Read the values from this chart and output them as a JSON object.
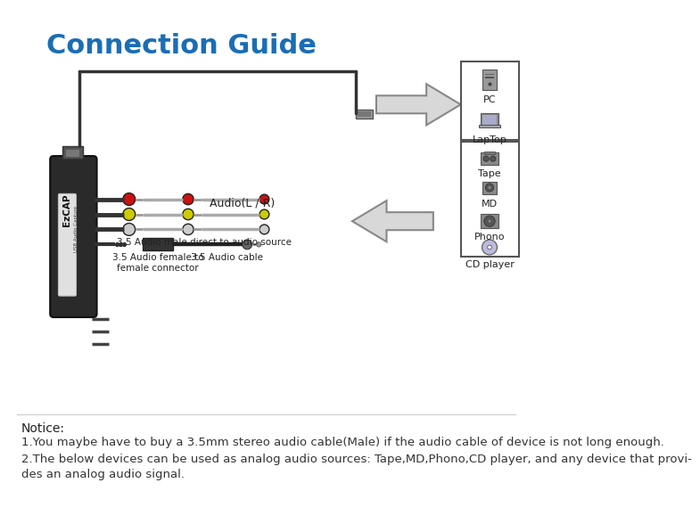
{
  "title": "Connection Guide",
  "title_color": "#1a6eb5",
  "title_fontsize": 22,
  "bg_color": "#ffffff",
  "notice_text": "Notice:",
  "notice_line1": "1.You maybe have to buy a 3.5mm stereo audio cable(Male) if the audio cable of device is not long enough.",
  "notice_line2": "2.The below devices can be used as analog audio sources: Tape,MD,Phono,CD player, and any device that provi-",
  "notice_line3": "des an analog audio signal.",
  "label_audio_lr": "Audio(L / R)",
  "label_35_male": "3.5 Audio male direct to audio source",
  "label_35_female": "3.5 Audio female to\nfemale connector",
  "label_35_cable": "3.5 Audio cable",
  "label_pc": "PC",
  "label_laptop": "LapTop",
  "label_tape": "Tape",
  "label_md": "MD",
  "label_phono": "Phono",
  "label_cd": "CD player",
  "rca_red": "#cc1111",
  "rca_yellow": "#cccc00",
  "rca_white": "#cccccc",
  "ezcap_color": "#2a2a2a",
  "arrow_face": "#d8d8d8",
  "arrow_edge": "#888888"
}
